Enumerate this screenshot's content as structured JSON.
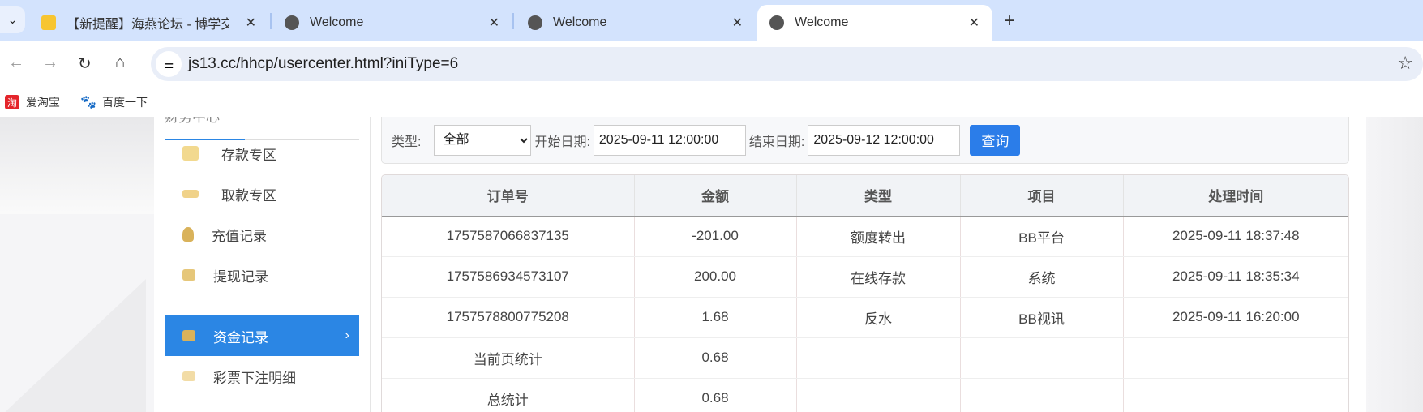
{
  "browser": {
    "tabs": [
      {
        "title": "【新提醒】海燕论坛 - 博学交流",
        "icon": "forum-favicon-icon",
        "active": false
      },
      {
        "title": "Welcome",
        "icon": "globe-icon",
        "active": false
      },
      {
        "title": "Welcome",
        "icon": "globe-icon",
        "active": false
      },
      {
        "title": "Welcome",
        "icon": "globe-icon",
        "active": true
      }
    ],
    "url": "js13.cc/hhcp/usercenter.html?iniType=6",
    "bookmarks": [
      {
        "label": "爱淘宝",
        "icon": "taobao-icon"
      },
      {
        "label": "百度一下",
        "icon": "baidu-paw-icon"
      }
    ]
  },
  "sidebar": {
    "title": "财务中心",
    "items": [
      {
        "label": "存款专区",
        "icon": "card-icon"
      },
      {
        "label": "取款专区",
        "icon": "hand-cash-icon"
      },
      {
        "label": "充值记录",
        "icon": "money-bag-icon"
      },
      {
        "label": "提现记录",
        "icon": "wallet-icon"
      },
      {
        "label": "资金记录",
        "icon": "cash-register-icon",
        "active": true
      },
      {
        "label": "彩票下注明细",
        "icon": "list-icon"
      }
    ]
  },
  "filter": {
    "type_label": "类型:",
    "type_value": "全部",
    "start_label": "开始日期:",
    "start_value": "2025-09-11 12:00:00",
    "end_label": "结束日期:",
    "end_value": "2025-09-12 12:00:00",
    "query_label": "查询"
  },
  "table": {
    "headers": [
      "订单号",
      "金额",
      "类型",
      "项目",
      "处理时间"
    ],
    "rows": [
      [
        "1757587066837135",
        "-201.00",
        "额度转出",
        "BB平台",
        "2025-09-11 18:37:48"
      ],
      [
        "1757586934573107",
        "200.00",
        "在线存款",
        "系统",
        "2025-09-11 18:35:34"
      ],
      [
        "1757578800775208",
        "1.68",
        "反水",
        "BB视讯",
        "2025-09-11 16:20:00"
      ],
      [
        "当前页统计",
        "0.68",
        "",
        "",
        ""
      ],
      [
        "总统计",
        "0.68",
        "",
        "",
        ""
      ]
    ]
  },
  "colors": {
    "accent": "#2b86e4",
    "button": "#2b7de9",
    "icon_gold": "#d9b25a"
  }
}
